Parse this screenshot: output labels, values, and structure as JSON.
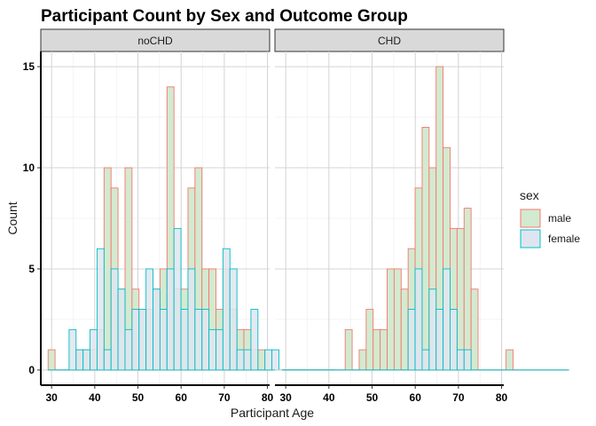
{
  "chart_data": {
    "type": "histogram",
    "title": "Participant Count by Sex and Outcome Group",
    "xlabel": "Participant Age",
    "ylabel": "Count",
    "xlim": [
      27.5,
      80.5
    ],
    "ylim": [
      -0.75,
      15.75
    ],
    "xticks": [
      30,
      40,
      50,
      60,
      70,
      80
    ],
    "yticks": [
      0,
      5,
      10,
      15
    ],
    "bin_width": 1.62,
    "grid": true,
    "legend": {
      "title": "sex",
      "position": "right",
      "entries": [
        {
          "key": "male",
          "label": "male",
          "fill": "#d3ead0",
          "stroke": "#f8766d"
        },
        {
          "key": "female",
          "label": "female",
          "fill": "#dfe5f0",
          "stroke": "#00bfc4"
        }
      ]
    },
    "x_start": 29.19,
    "facets": [
      {
        "label": "noCHD",
        "series": [
          {
            "name": "male",
            "values": [
              1,
              0,
              0,
              0,
              1,
              1,
              1,
              2,
              10,
              9,
              4,
              10,
              4,
              3,
              3,
              4,
              5,
              14,
              4,
              4,
              9,
              10,
              5,
              5,
              3,
              5,
              3,
              2,
              2,
              1,
              1,
              0,
              0,
              0,
              0,
              0,
              0,
              0,
              0,
              0,
              0
            ]
          },
          {
            "name": "female",
            "values": [
              0,
              0,
              0,
              2,
              1,
              1,
              2,
              6,
              1,
              5,
              4,
              2,
              3,
              3,
              5,
              4,
              3,
              5,
              7,
              3,
              5,
              3,
              3,
              2,
              2,
              6,
              5,
              1,
              1,
              3,
              0,
              1,
              1,
              0,
              0,
              0,
              0,
              0,
              0,
              0,
              0
            ]
          }
        ]
      },
      {
        "label": "CHD",
        "series": [
          {
            "name": "male",
            "values": [
              0,
              0,
              0,
              0,
              0,
              0,
              0,
              0,
              0,
              2,
              0,
              1,
              3,
              2,
              2,
              5,
              5,
              4,
              6,
              9,
              12,
              10,
              15,
              11,
              7,
              7,
              8,
              4,
              0,
              0,
              0,
              0,
              1,
              0,
              0,
              0,
              0,
              0,
              0,
              0,
              0
            ]
          },
          {
            "name": "female",
            "values": [
              0,
              0,
              0,
              0,
              0,
              0,
              0,
              0,
              0,
              0,
              0,
              0,
              0,
              0,
              0,
              0,
              0,
              0,
              3,
              5,
              1,
              4,
              3,
              5,
              3,
              1,
              1,
              0,
              0,
              0,
              0,
              0,
              0,
              0,
              0,
              0,
              0,
              0,
              0,
              0,
              0
            ]
          }
        ]
      }
    ]
  }
}
